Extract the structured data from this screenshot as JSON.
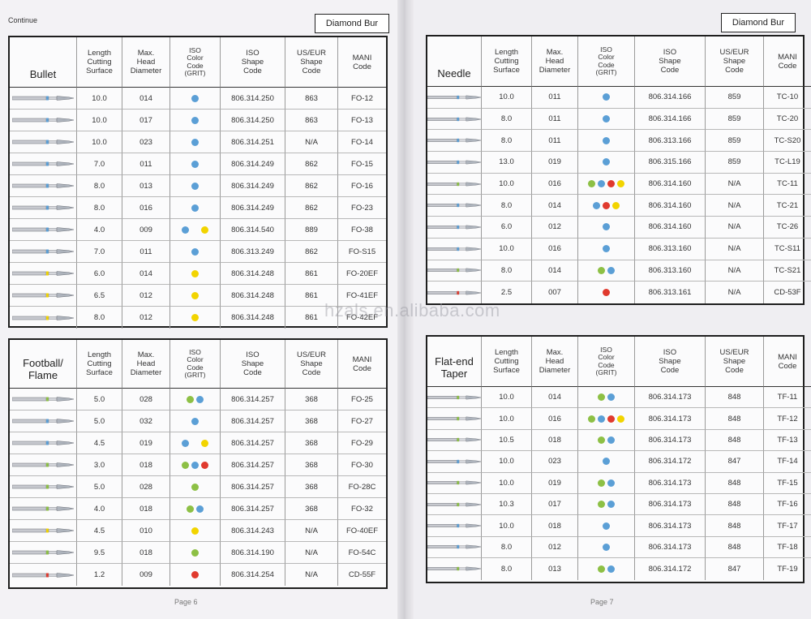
{
  "header": {
    "continue_label": "Continue",
    "left_tag": "Diamond Bur",
    "right_tag": "Diamond Bur",
    "watermark": "hzals.en.alibaba.com",
    "left_page_no": "Page 6",
    "right_page_no": "Page 7"
  },
  "grit_colors": {
    "green": "#8dc045",
    "blue": "#5b9fd6",
    "red": "#e03a2e",
    "yellow": "#f2d400"
  },
  "column_headers": {
    "length": "Length\nCutting\nSurface",
    "diameter": "Max.\nHead\nDiameter",
    "iso_color": "ISO\nColor\nCode\n(GRIT)",
    "iso_shape": "ISO\nShape\nCode",
    "us_eur": "US/EUR\nShape\nCode",
    "mani": "MANI\nCode"
  },
  "tables": {
    "bullet": {
      "title": "Bullet",
      "rows": [
        {
          "len": "10.0",
          "dia": "014",
          "grit": [
            "blue"
          ],
          "iso": "806.314.250",
          "us": "863",
          "mani": "FO-12"
        },
        {
          "len": "10.0",
          "dia": "017",
          "grit": [
            "blue"
          ],
          "iso": "806.314.250",
          "us": "863",
          "mani": "FO-13"
        },
        {
          "len": "10.0",
          "dia": "023",
          "grit": [
            "blue"
          ],
          "iso": "806.314.251",
          "us": "N/A",
          "mani": "FO-14"
        },
        {
          "len": "7.0",
          "dia": "011",
          "grit": [
            "blue"
          ],
          "iso": "806.314.249",
          "us": "862",
          "mani": "FO-15"
        },
        {
          "len": "8.0",
          "dia": "013",
          "grit": [
            "blue"
          ],
          "iso": "806.314.249",
          "us": "862",
          "mani": "FO-16"
        },
        {
          "len": "8.0",
          "dia": "016",
          "grit": [
            "blue"
          ],
          "iso": "806.314.249",
          "us": "862",
          "mani": "FO-23"
        },
        {
          "len": "4.0",
          "dia": "009",
          "grit": [
            "blue",
            "gap",
            "yellow"
          ],
          "iso": "806.314.540",
          "us": "889",
          "mani": "FO-38"
        },
        {
          "len": "7.0",
          "dia": "011",
          "grit": [
            "blue"
          ],
          "iso": "806.313.249",
          "us": "862",
          "mani": "FO-S15"
        },
        {
          "len": "6.0",
          "dia": "014",
          "grit": [
            "yellow"
          ],
          "iso": "806.314.248",
          "us": "861",
          "mani": "FO-20EF"
        },
        {
          "len": "6.5",
          "dia": "012",
          "grit": [
            "yellow"
          ],
          "iso": "806.314.248",
          "us": "861",
          "mani": "FO-41EF"
        },
        {
          "len": "8.0",
          "dia": "012",
          "grit": [
            "yellow"
          ],
          "iso": "806.314.248",
          "us": "861",
          "mani": "FO-42EF"
        }
      ]
    },
    "football": {
      "title": "Football/\nFlame",
      "rows": [
        {
          "len": "5.0",
          "dia": "028",
          "grit": [
            "green",
            "blue"
          ],
          "iso": "806.314.257",
          "us": "368",
          "mani": "FO-25"
        },
        {
          "len": "5.0",
          "dia": "032",
          "grit": [
            "blue"
          ],
          "iso": "806.314.257",
          "us": "368",
          "mani": "FO-27"
        },
        {
          "len": "4.5",
          "dia": "019",
          "grit": [
            "blue",
            "gap",
            "yellow"
          ],
          "iso": "806.314.257",
          "us": "368",
          "mani": "FO-29"
        },
        {
          "len": "3.0",
          "dia": "018",
          "grit": [
            "green",
            "blue",
            "red"
          ],
          "iso": "806.314.257",
          "us": "368",
          "mani": "FO-30"
        },
        {
          "len": "5.0",
          "dia": "028",
          "grit": [
            "green"
          ],
          "iso": "806.314.257",
          "us": "368",
          "mani": "FO-28C"
        },
        {
          "len": "4.0",
          "dia": "018",
          "grit": [
            "green",
            "blue"
          ],
          "iso": "806.314.257",
          "us": "368",
          "mani": "FO-32"
        },
        {
          "len": "4.5",
          "dia": "010",
          "grit": [
            "yellow"
          ],
          "iso": "806.314.243",
          "us": "N/A",
          "mani": "FO-40EF"
        },
        {
          "len": "9.5",
          "dia": "018",
          "grit": [
            "green"
          ],
          "iso": "806.314.190",
          "us": "N/A",
          "mani": "FO-54C"
        },
        {
          "len": "1.2",
          "dia": "009",
          "grit": [
            "red"
          ],
          "iso": "806.314.254",
          "us": "N/A",
          "mani": "CD-55F"
        }
      ]
    },
    "needle": {
      "title": "Needle",
      "rows": [
        {
          "len": "10.0",
          "dia": "011",
          "grit": [
            "blue"
          ],
          "iso": "806.314.166",
          "us": "859",
          "mani": "TC-10"
        },
        {
          "len": "8.0",
          "dia": "011",
          "grit": [
            "blue"
          ],
          "iso": "806.314.166",
          "us": "859",
          "mani": "TC-20"
        },
        {
          "len": "8.0",
          "dia": "011",
          "grit": [
            "blue"
          ],
          "iso": "806.313.166",
          "us": "859",
          "mani": "TC-S20"
        },
        {
          "len": "13.0",
          "dia": "019",
          "grit": [
            "blue"
          ],
          "iso": "806.315.166",
          "us": "859",
          "mani": "TC-L19"
        },
        {
          "len": "10.0",
          "dia": "016",
          "grit": [
            "green",
            "blue",
            "red",
            "yellow"
          ],
          "iso": "806.314.160",
          "us": "N/A",
          "mani": "TC-11"
        },
        {
          "len": "8.0",
          "dia": "014",
          "grit": [
            "blue",
            "red",
            "yellow"
          ],
          "iso": "806.314.160",
          "us": "N/A",
          "mani": "TC-21"
        },
        {
          "len": "6.0",
          "dia": "012",
          "grit": [
            "blue"
          ],
          "iso": "806.314.160",
          "us": "N/A",
          "mani": "TC-26"
        },
        {
          "len": "10.0",
          "dia": "016",
          "grit": [
            "blue"
          ],
          "iso": "806.313.160",
          "us": "N/A",
          "mani": "TC-S11"
        },
        {
          "len": "8.0",
          "dia": "014",
          "grit": [
            "green",
            "blue"
          ],
          "iso": "806.313.160",
          "us": "N/A",
          "mani": "TC-S21"
        },
        {
          "len": "2.5",
          "dia": "007",
          "grit": [
            "red"
          ],
          "iso": "806.313.161",
          "us": "N/A",
          "mani": "CD-53F"
        }
      ]
    },
    "flatend": {
      "title": "Flat-end\nTaper",
      "rows": [
        {
          "len": "10.0",
          "dia": "014",
          "grit": [
            "green",
            "blue"
          ],
          "iso": "806.314.173",
          "us": "848",
          "mani": "TF-11"
        },
        {
          "len": "10.0",
          "dia": "016",
          "grit": [
            "green",
            "blue",
            "red",
            "yellow"
          ],
          "iso": "806.314.173",
          "us": "848",
          "mani": "TF-12"
        },
        {
          "len": "10.5",
          "dia": "018",
          "grit": [
            "green",
            "blue"
          ],
          "iso": "806.314.173",
          "us": "848",
          "mani": "TF-13"
        },
        {
          "len": "10.0",
          "dia": "023",
          "grit": [
            "blue"
          ],
          "iso": "806.314.172",
          "us": "847",
          "mani": "TF-14"
        },
        {
          "len": "10.0",
          "dia": "019",
          "grit": [
            "green",
            "blue"
          ],
          "iso": "806.314.173",
          "us": "848",
          "mani": "TF-15"
        },
        {
          "len": "10.3",
          "dia": "017",
          "grit": [
            "green",
            "blue"
          ],
          "iso": "806.314.173",
          "us": "848",
          "mani": "TF-16"
        },
        {
          "len": "10.0",
          "dia": "018",
          "grit": [
            "blue"
          ],
          "iso": "806.314.173",
          "us": "848",
          "mani": "TF-17"
        },
        {
          "len": "8.0",
          "dia": "012",
          "grit": [
            "blue"
          ],
          "iso": "806.314.173",
          "us": "848",
          "mani": "TF-18"
        },
        {
          "len": "8.0",
          "dia": "013",
          "grit": [
            "green",
            "blue"
          ],
          "iso": "806.314.172",
          "us": "847",
          "mani": "TF-19"
        }
      ]
    }
  }
}
